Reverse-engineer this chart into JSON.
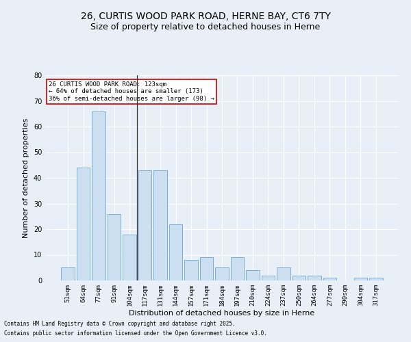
{
  "title_line1": "26, CURTIS WOOD PARK ROAD, HERNE BAY, CT6 7TY",
  "title_line2": "Size of property relative to detached houses in Herne",
  "xlabel": "Distribution of detached houses by size in Herne",
  "ylabel": "Number of detached properties",
  "categories": [
    "51sqm",
    "64sqm",
    "77sqm",
    "91sqm",
    "104sqm",
    "117sqm",
    "131sqm",
    "144sqm",
    "157sqm",
    "171sqm",
    "184sqm",
    "197sqm",
    "210sqm",
    "224sqm",
    "237sqm",
    "250sqm",
    "264sqm",
    "277sqm",
    "290sqm",
    "304sqm",
    "317sqm"
  ],
  "values": [
    5,
    44,
    66,
    26,
    18,
    43,
    43,
    22,
    8,
    9,
    5,
    9,
    4,
    2,
    5,
    2,
    2,
    1,
    0,
    1,
    1
  ],
  "bar_color": "#ccdff0",
  "bar_edge_color": "#7aafd4",
  "highlight_line_index": 5,
  "highlight_line_color": "#333333",
  "ylim": [
    0,
    80
  ],
  "yticks": [
    0,
    10,
    20,
    30,
    40,
    50,
    60,
    70,
    80
  ],
  "annotation_text": "26 CURTIS WOOD PARK ROAD: 123sqm\n← 64% of detached houses are smaller (173)\n36% of semi-detached houses are larger (98) →",
  "annotation_box_facecolor": "#ffffff",
  "annotation_box_edgecolor": "#cc0000",
  "footnote_line1": "Contains HM Land Registry data © Crown copyright and database right 2025.",
  "footnote_line2": "Contains public sector information licensed under the Open Government Licence v3.0.",
  "background_color": "#e8eff7",
  "plot_bg_color": "#e8eff7",
  "grid_color": "#ffffff",
  "title1_fontsize": 10,
  "title2_fontsize": 9,
  "tick_fontsize": 6.5,
  "ylabel_fontsize": 8,
  "xlabel_fontsize": 8,
  "footnote_fontsize": 5.5,
  "annotation_fontsize": 6.5
}
